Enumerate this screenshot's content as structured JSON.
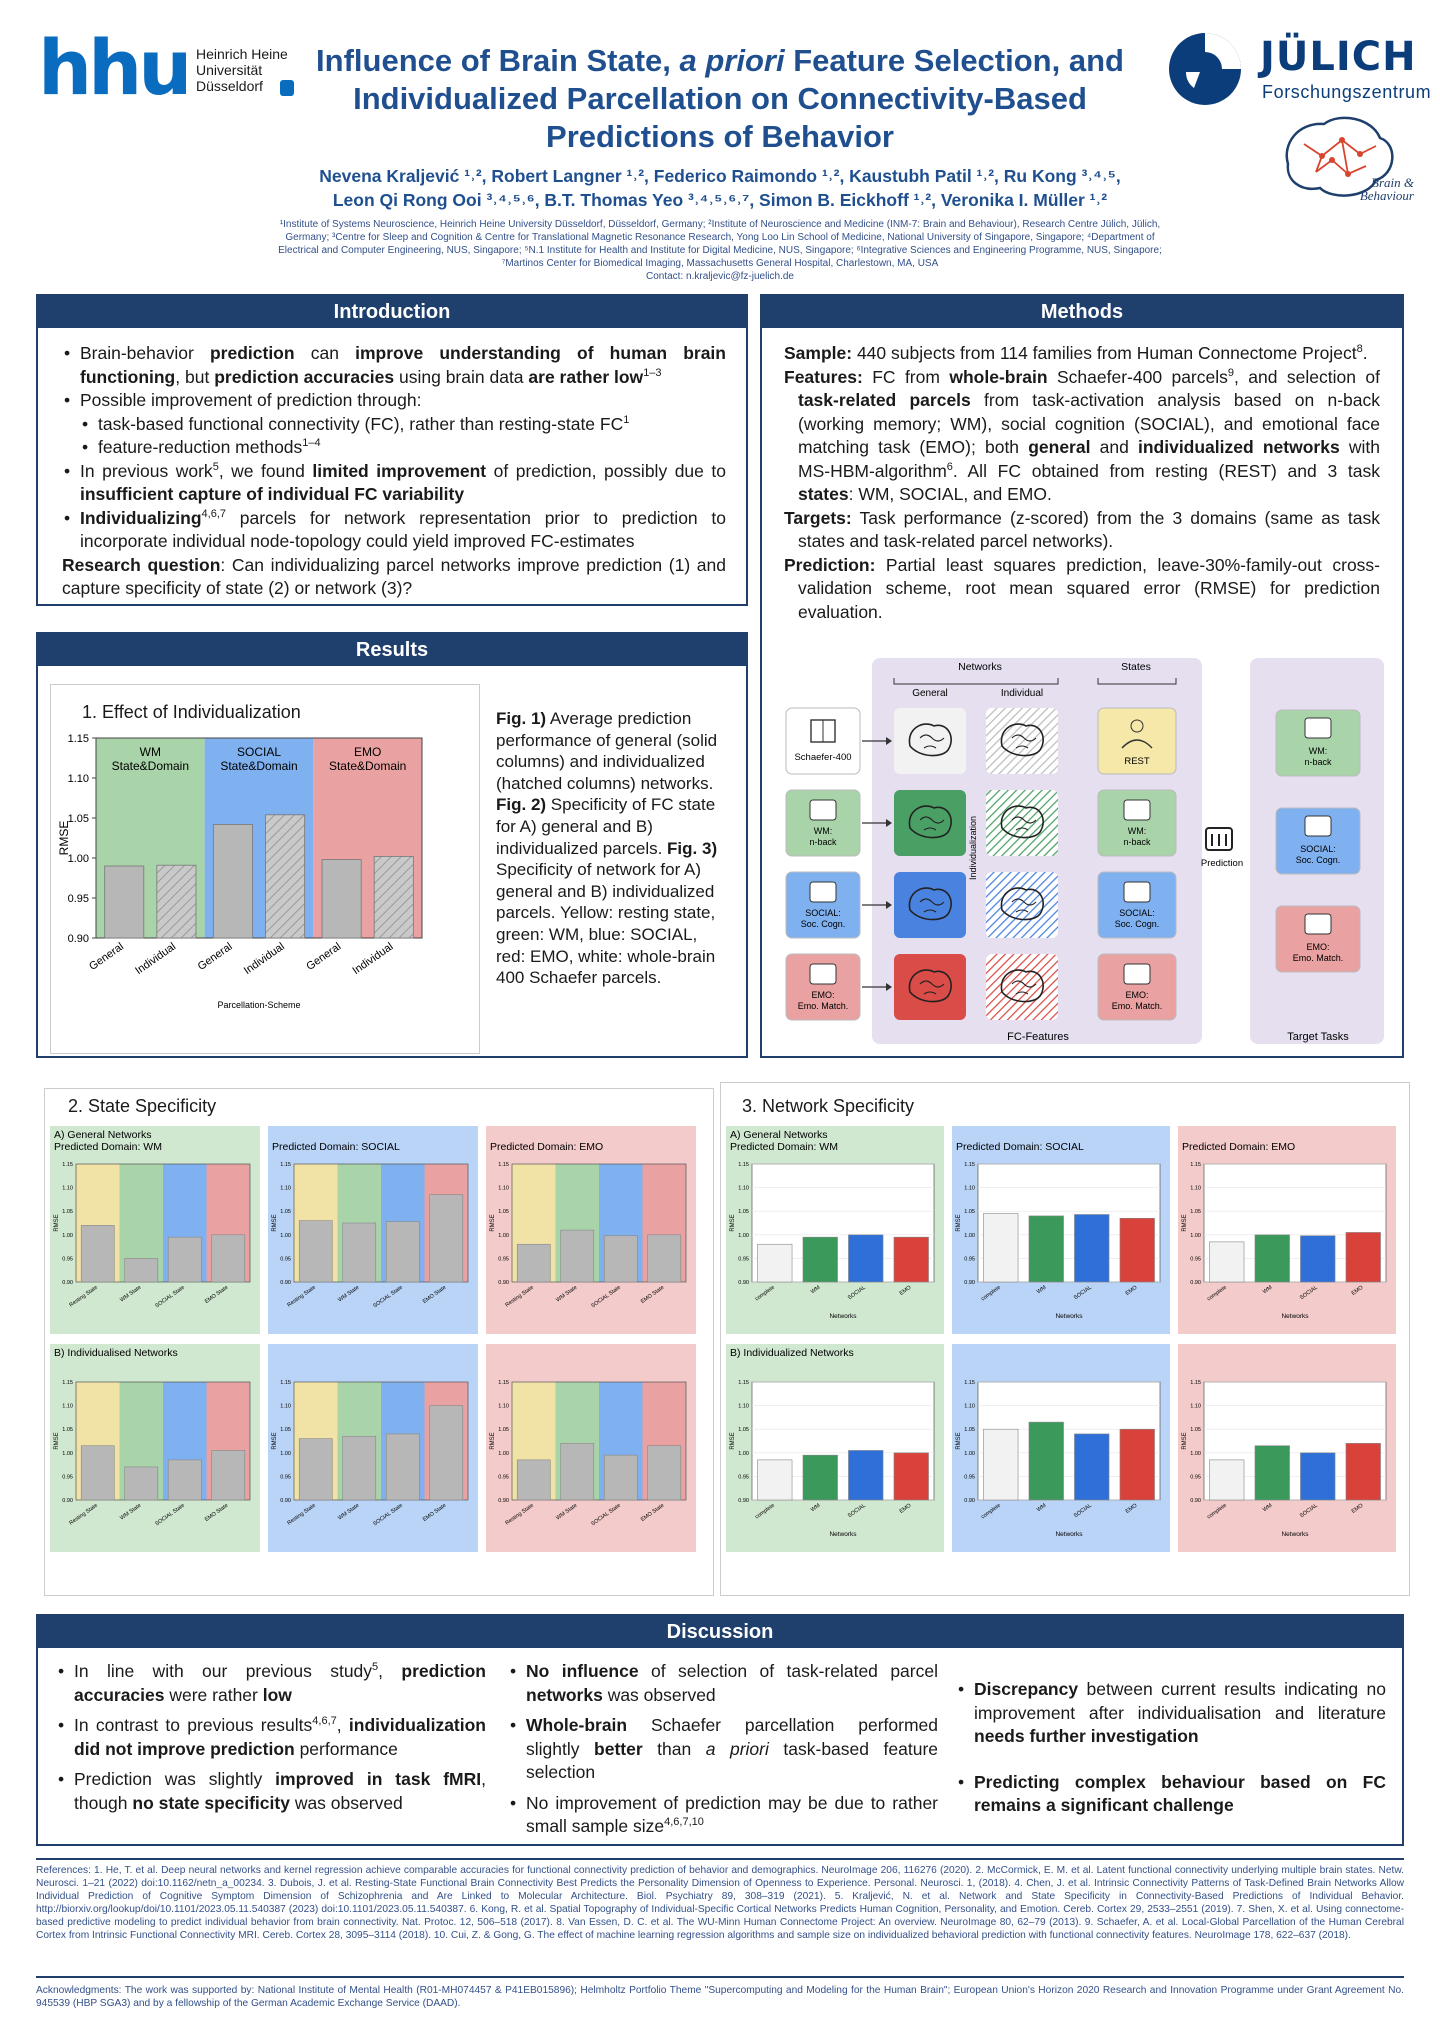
{
  "header": {
    "hhu_word": "hhu",
    "hhu_uni": [
      "Heinrich Heine",
      "Universität",
      "Düsseldorf"
    ],
    "title_parts": [
      "Influence of Brain State, ",
      "a priori",
      " Feature Selection, and Individualized Parcellation on Connectivity-Based Predictions of Behavior"
    ],
    "authors_line1": "Nevena Kraljević ¹˒², Robert Langner ¹˒², Federico Raimondo ¹˒², Kaustubh Patil ¹˒², Ru Kong ³˒⁴˒⁵,",
    "authors_line2": "Leon Qi Rong Ooi ³˒⁴˒⁵˒⁶, B.T. Thomas Yeo ³˒⁴˒⁵˒⁶˒⁷, Simon B. Eickhoff ¹˒², Veronika I. Müller ¹˒²",
    "affiliations": "¹Institute of Systems Neuroscience, Heinrich Heine University Düsseldorf, Düsseldorf, Germany; ²Institute of Neuroscience and Medicine (INM-7: Brain and Behaviour), Research Centre Jülich, Jülich, Germany; ³Centre for Sleep and Cognition & Centre for Translational Magnetic Resonance Research, Yong Loo Lin School of Medicine, National University of Singapore, Singapore; ⁴Department of Electrical and Computer Engineering, NUS, Singapore; ⁵N.1 Institute for Health and Institute for Digital Medicine, NUS, Singapore; ⁶Integrative Sciences and Engineering Programme, NUS, Singapore; ⁷Martinos Center for Biomedical Imaging, Massachusetts General Hospital, Charlestown, MA, USA",
    "contact": "Contact: n.kraljevic@fz-juelich.de",
    "julich_name": "JÜLICH",
    "julich_sub": "Forschungszentrum",
    "bb_line1": "Brain &",
    "bb_line2": "Behaviour"
  },
  "introduction": {
    "heading": "Introduction"
  },
  "methods": {
    "heading": "Methods"
  },
  "results": {
    "heading": "Results",
    "fig1_caption": [
      "Fig. 1)",
      " Average prediction performance of general (solid columns) and individualized (hatched columns) networks. ",
      "Fig. 2)",
      " Specificity of FC state for A) general and B) individualized parcels. ",
      "Fig. 3)",
      " Specificity of network for A) general and B) individualized parcels. Yellow: resting state, green: WM, blue: SOCIAL, red: EMO, white: whole-brain 400 Schaefer parcels."
    ]
  },
  "diagram": {
    "networks": "Networks",
    "states": "States",
    "general": "General",
    "individual": "Individual",
    "individualization": "Individualization",
    "schaefer": "Schaefer-400",
    "rest": "REST",
    "wm": [
      "WM:",
      "n-back"
    ],
    "social": [
      "SOCIAL:",
      "Soc. Cogn."
    ],
    "emo": [
      "EMO:",
      "Emo. Match."
    ],
    "prediction": "Prediction",
    "fc_features": "FC-Features",
    "target_tasks": "Target Tasks"
  },
  "discussion": {
    "heading": "Discussion"
  },
  "references": "References: 1. He, T. et al. Deep neural networks and kernel regression achieve comparable accuracies for functional connectivity prediction of behavior and demographics. NeuroImage 206, 116276 (2020).   2. McCormick, E. M. et al. Latent functional connectivity underlying multiple brain states. Netw. Neurosci. 1–21 (2022) doi:10.1162/netn_a_00234.   3. Dubois, J. et al. Resting-State Functional Brain Connectivity Best Predicts the Personality Dimension of Openness to Experience. Personal. Neurosci. 1, (2018).   4. Chen, J. et al. Intrinsic Connectivity Patterns of Task-Defined Brain Networks Allow Individual Prediction of Cognitive Symptom Dimension of Schizophrenia and Are Linked to Molecular Architecture. Biol. Psychiatry 89, 308–319 (2021).   5. Kraljević, N. et al. Network and State Specificity in Connectivity-Based Predictions of Individual Behavior. http://biorxiv.org/lookup/doi/10.1101/2023.05.11.540387 (2023) doi:10.1101/2023.05.11.540387.   6. Kong, R. et al. Spatial Topography of Individual-Specific Cortical Networks Predicts Human Cognition, Personality, and Emotion. Cereb. Cortex 29, 2533–2551 (2019).   7. Shen, X. et al. Using connectome-based predictive modeling to predict individual behavior from brain connectivity. Nat. Protoc. 12, 506–518 (2017).   8. Van Essen, D. C. et al. The WU-Minn Human Connectome Project: An overview. NeuroImage 80, 62–79 (2013).   9. Schaefer, A. et al. Local-Global Parcellation of the Human Cerebral Cortex from Intrinsic Functional Connectivity MRI. Cereb. Cortex 28, 3095–3114 (2018).   10. Cui, Z. & Gong, G. The effect of machine learning regression algorithms and sample size on individualized behavioral prediction with functional connectivity features. NeuroImage 178, 622–637 (2018).",
  "acknowledgments": "Acknowledgments: The work was supported by: National Institute of Mental Health (R01-MH074457 & P41EB015896); Helmholtz Portfolio Theme \"Supercomputing and Modeling for the Human Brain\"; European Union's Horizon 2020 Research and Innovation Programme under Grant Agreement No. 945539 (HBP SGA3) and by a fellowship of the German Academic Exchange Service (DAAD).",
  "colors": {
    "navy": "#1f3f6d",
    "wm": "#a9d4a9",
    "social": "#7fb0ef",
    "emo": "#e9a1a1",
    "rest": "#f1e2a6",
    "bar_gray": "#b7b7b7",
    "bar_green": "#3b9a5b",
    "bar_blue": "#2f6fd8",
    "bar_red": "#d9413b"
  },
  "chart_data": [
    {
      "id": "fig1",
      "type": "bar",
      "title": "1. Effect of Individualization",
      "ylabel": "RMSE",
      "xlabel": "Parcellation-Scheme",
      "ylim": [
        0.9,
        1.15
      ],
      "yticks": [
        "0.90",
        "0.95",
        "1.00",
        "1.05",
        "1.10",
        "1.15"
      ],
      "categories": [
        "General",
        "Individual",
        "General",
        "Individual",
        "General",
        "Individual"
      ],
      "groups": [
        {
          "label": [
            "WM",
            "State&Domain"
          ],
          "color": "#a9d4a9"
        },
        {
          "label": [
            "SOCIAL",
            "State&Domain"
          ],
          "color": "#7fb0ef"
        },
        {
          "label": [
            "EMO",
            "State&Domain"
          ],
          "color": "#e9a1a1"
        }
      ],
      "values": [
        0.99,
        0.991,
        1.042,
        1.054,
        0.998,
        1.002
      ],
      "hatched": [
        false,
        true,
        false,
        true,
        false,
        true
      ]
    },
    {
      "id": "fig2",
      "title": "2. State Specificity",
      "type": "bar",
      "ylabel": "RMSE",
      "ylim": [
        0.9,
        1.15
      ],
      "yticks": [
        "0.90",
        "0.95",
        "1.00",
        "1.05",
        "1.10",
        "1.15"
      ],
      "categories": [
        "Resting State",
        "WM State",
        "SOCIAL State",
        "EMO State"
      ],
      "rows": [
        {
          "label": "A) General Networks",
          "panels": [
            {
              "domain": "Predicted Domain: WM",
              "values": [
                1.02,
                0.95,
                0.995,
                1.0
              ]
            },
            {
              "domain": "Predicted Domain: SOCIAL",
              "values": [
                1.03,
                1.025,
                1.028,
                1.085
              ]
            },
            {
              "domain": "Predicted Domain: EMO",
              "values": [
                0.98,
                1.01,
                0.998,
                1.0
              ]
            }
          ]
        },
        {
          "label": "B) Individualised Networks",
          "panels": [
            {
              "domain": "",
              "values": [
                1.015,
                0.97,
                0.985,
                1.005
              ]
            },
            {
              "domain": "",
              "values": [
                1.03,
                1.035,
                1.04,
                1.1
              ]
            },
            {
              "domain": "",
              "values": [
                0.985,
                1.02,
                0.995,
                1.015
              ]
            }
          ]
        }
      ]
    },
    {
      "id": "fig3",
      "title": "3. Network Specificity",
      "type": "bar",
      "ylabel": "RMSE",
      "xlabel": "Networks",
      "ylim": [
        0.9,
        1.15
      ],
      "yticks": [
        "0.90",
        "0.95",
        "1.00",
        "1.05",
        "1.10",
        "1.15"
      ],
      "categories": [
        "complete",
        "WM",
        "SOCIAL",
        "EMO"
      ],
      "rows": [
        {
          "label": "A) General Networks",
          "panels": [
            {
              "domain": "Predicted Domain: WM",
              "values": [
                0.98,
                0.995,
                1.0,
                0.995
              ]
            },
            {
              "domain": "Predicted Domain: SOCIAL",
              "values": [
                1.045,
                1.04,
                1.043,
                1.035
              ]
            },
            {
              "domain": "Predicted Domain: EMO",
              "values": [
                0.985,
                1.0,
                0.998,
                1.005
              ]
            }
          ]
        },
        {
          "label": "B) Individualized Networks",
          "panels": [
            {
              "domain": "",
              "values": [
                0.985,
                0.995,
                1.005,
                1.0
              ]
            },
            {
              "domain": "",
              "values": [
                1.05,
                1.065,
                1.04,
                1.05
              ]
            },
            {
              "domain": "",
              "values": [
                0.985,
                1.015,
                1.0,
                1.02
              ]
            }
          ]
        }
      ]
    }
  ]
}
